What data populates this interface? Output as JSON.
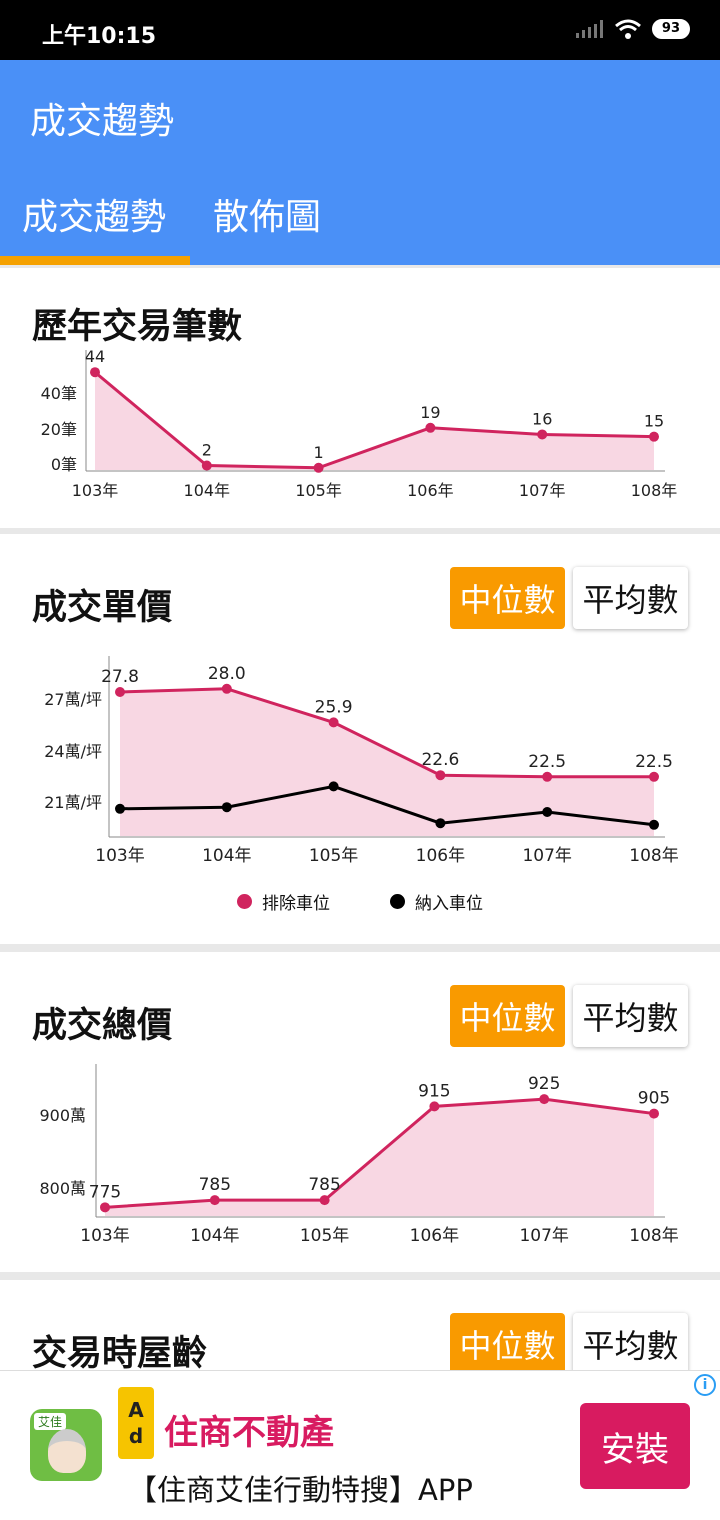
{
  "status_bar": {
    "time": "上午10:15",
    "battery": "93"
  },
  "app_bar": {
    "title": "成交趨勢"
  },
  "tabs": [
    {
      "label": "成交趨勢",
      "active": true
    },
    {
      "label": "散佈圖",
      "active": false
    }
  ],
  "toggle": {
    "median_label": "中位數",
    "mean_label": "平均數"
  },
  "cards": {
    "count": {
      "title": "歷年交易筆數"
    },
    "unit_price": {
      "title": "成交單價"
    },
    "total_price": {
      "title": "成交總價"
    },
    "age": {
      "title": "交易時屋齡"
    }
  },
  "chart_data": [
    {
      "type": "area",
      "categories": [
        "103年",
        "104年",
        "105年",
        "106年",
        "107年",
        "108年"
      ],
      "series": [
        {
          "values": [
            44,
            2,
            1,
            19,
            16,
            15
          ],
          "color": "#d0245e"
        }
      ],
      "data_labels": [
        "44",
        "2",
        "1",
        "19",
        "16",
        "15"
      ],
      "yticks": [
        "0筆",
        "20筆",
        "40筆"
      ],
      "ylim": [
        0,
        45
      ]
    },
    {
      "type": "line",
      "categories": [
        "103年",
        "104年",
        "105年",
        "106年",
        "107年",
        "108年"
      ],
      "series": [
        {
          "name": "排除車位",
          "values": [
            27.8,
            28.0,
            25.9,
            22.6,
            22.5,
            22.5
          ],
          "color": "#d0245e",
          "fill": true
        },
        {
          "name": "納入車位",
          "values": [
            20.5,
            20.6,
            21.9,
            19.6,
            20.3,
            19.5
          ],
          "color": "#000000",
          "fill": false
        }
      ],
      "data_labels": [
        "27.8",
        "28.0",
        "25.9",
        "22.6",
        "22.5",
        "22.5"
      ],
      "yticks": [
        "21萬/坪",
        "24萬/坪",
        "27萬/坪"
      ],
      "ylim": [
        18.8,
        28.8
      ],
      "legend_position": "bottom"
    },
    {
      "type": "area",
      "categories": [
        "103年",
        "104年",
        "105年",
        "106年",
        "107年",
        "108年"
      ],
      "series": [
        {
          "values": [
            775,
            785,
            785,
            915,
            925,
            905
          ],
          "color": "#d0245e"
        }
      ],
      "data_labels": [
        "775",
        "785",
        "785",
        "915",
        "925",
        "905"
      ],
      "yticks": [
        "800萬",
        "900萬"
      ],
      "ylim": [
        763,
        946
      ]
    }
  ],
  "ad": {
    "badge_a": "A",
    "badge_d": "d",
    "logo_tag": "艾佳",
    "title": "住商不動產",
    "subtitle": "【住商艾佳行動特搜】APP",
    "install": "安裝",
    "info": "i"
  }
}
